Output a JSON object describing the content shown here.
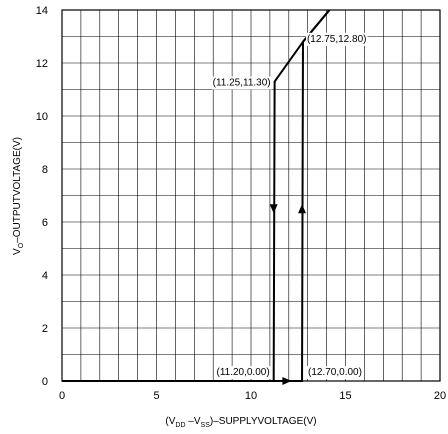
{
  "chart_data": {
    "type": "line",
    "xlabel": {
      "prefix": "(V",
      "sub1": "DD",
      "mid": " –V",
      "sub2": "SS",
      "suffix": ")–SUPPLYVOLTAGE(V)"
    },
    "ylabel": {
      "prefix": "V",
      "sub": "O",
      "suffix": "–OUTPUTVOLTAGE(V)"
    },
    "xlim": [
      0,
      20
    ],
    "ylim": [
      0,
      14
    ],
    "grid": true,
    "x_ticks": [
      "0",
      "5",
      "10",
      "15",
      "20"
    ],
    "y_ticks": [
      "0",
      "2",
      "4",
      "6",
      "8",
      "10",
      "12",
      "14"
    ],
    "series": [
      {
        "values": [
          [
            0,
            0
          ],
          [
            12.7,
            0
          ],
          [
            12.75,
            12.8
          ],
          [
            14.15,
            14.0
          ]
        ]
      },
      {
        "values": [
          [
            14.15,
            14.0
          ],
          [
            12.75,
            12.8
          ],
          [
            11.25,
            11.3
          ],
          [
            11.2,
            0
          ],
          [
            0,
            0
          ]
        ]
      }
    ],
    "annotations": [
      {
        "text": "(12.75,12.80)",
        "x": 12.75,
        "y": 12.8
      },
      {
        "text": "(11.25,11.30)",
        "x": 11.25,
        "y": 11.3
      },
      {
        "text": "(11.20,0.00)",
        "x": 11.2,
        "y": 0.0
      },
      {
        "text": "(12.70,0.00)",
        "x": 12.7,
        "y": 0.0
      }
    ],
    "arrows": [
      {
        "x": 11.2,
        "y": 6.5,
        "direction": "down"
      },
      {
        "x": 12.7,
        "y": 6.5,
        "direction": "up"
      },
      {
        "x": 11.9,
        "y": 0.0,
        "direction": "right"
      }
    ]
  }
}
